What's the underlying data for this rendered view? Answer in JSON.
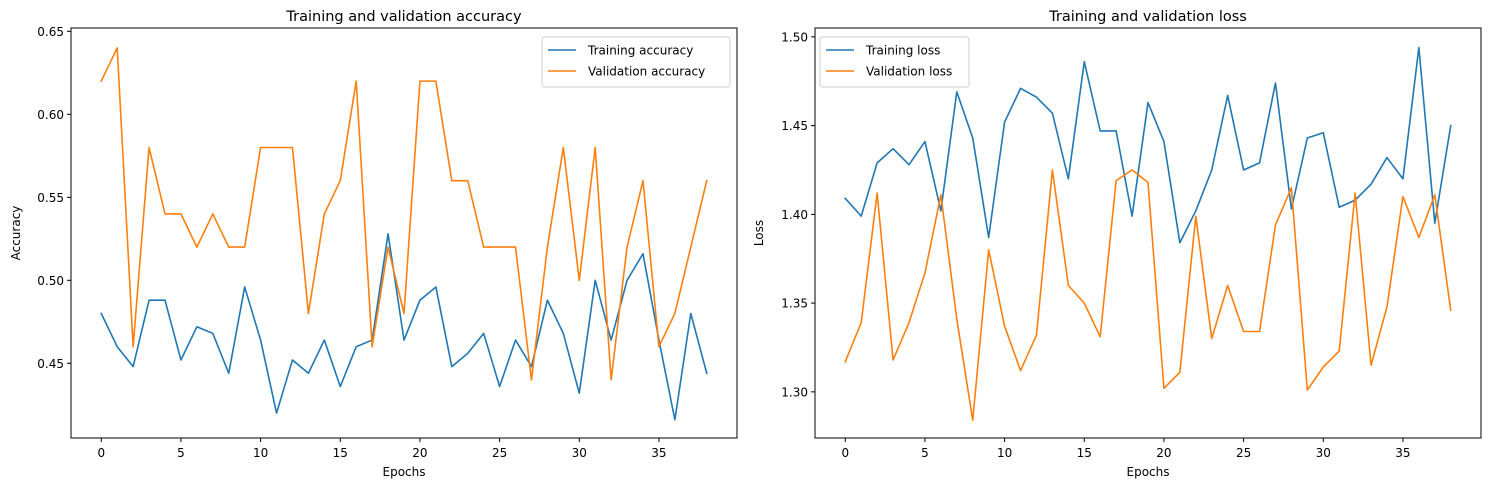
{
  "chart_data": [
    {
      "type": "line",
      "title": "Training and validation accuracy",
      "xlabel": "Epochs",
      "ylabel": "Accuracy",
      "xlim": [
        -1.9,
        39.9
      ],
      "ylim": [
        0.405,
        0.652
      ],
      "xticks": [
        0,
        5,
        10,
        15,
        20,
        25,
        30,
        35
      ],
      "yticks": [
        0.45,
        0.5,
        0.55,
        0.6,
        0.65
      ],
      "ytick_labels": [
        "0.45",
        "0.50",
        "0.55",
        "0.60",
        "0.65"
      ],
      "grid": false,
      "legend_position": "top-right",
      "x": [
        0,
        1,
        2,
        3,
        4,
        5,
        6,
        7,
        8,
        9,
        10,
        11,
        12,
        13,
        14,
        15,
        16,
        17,
        18,
        19,
        20,
        21,
        22,
        23,
        24,
        25,
        26,
        27,
        28,
        29,
        30,
        31,
        32,
        33,
        34,
        35,
        36,
        37,
        38
      ],
      "series": [
        {
          "name": "Training accuracy",
          "color": "#1f77b4",
          "values": [
            0.48,
            0.46,
            0.448,
            0.488,
            0.488,
            0.452,
            0.472,
            0.468,
            0.444,
            0.496,
            0.464,
            0.42,
            0.452,
            0.444,
            0.464,
            0.436,
            0.46,
            0.464,
            0.528,
            0.464,
            0.488,
            0.496,
            0.448,
            0.456,
            0.468,
            0.436,
            0.464,
            0.448,
            0.488,
            0.468,
            0.432,
            0.5,
            0.464,
            0.5,
            0.516,
            0.464,
            0.416,
            0.48,
            0.444
          ]
        },
        {
          "name": "Validation accuracy",
          "color": "#ff7f0e",
          "values": [
            0.62,
            0.64,
            0.46,
            0.58,
            0.54,
            0.54,
            0.52,
            0.54,
            0.52,
            0.52,
            0.58,
            0.58,
            0.58,
            0.48,
            0.54,
            0.56,
            0.62,
            0.46,
            0.52,
            0.48,
            0.62,
            0.62,
            0.56,
            0.56,
            0.52,
            0.52,
            0.52,
            0.44,
            0.52,
            0.58,
            0.5,
            0.58,
            0.44,
            0.52,
            0.56,
            0.46,
            0.48,
            0.52,
            0.56
          ]
        }
      ]
    },
    {
      "type": "line",
      "title": "Training and validation loss",
      "xlabel": "Epochs",
      "ylabel": "Loss",
      "xlim": [
        -1.9,
        39.9
      ],
      "ylim": [
        1.274,
        1.505
      ],
      "xticks": [
        0,
        5,
        10,
        15,
        20,
        25,
        30,
        35
      ],
      "yticks": [
        1.3,
        1.35,
        1.4,
        1.45,
        1.5
      ],
      "ytick_labels": [
        "1.30",
        "1.35",
        "1.40",
        "1.45",
        "1.50"
      ],
      "grid": false,
      "legend_position": "top-left",
      "x": [
        0,
        1,
        2,
        3,
        4,
        5,
        6,
        7,
        8,
        9,
        10,
        11,
        12,
        13,
        14,
        15,
        16,
        17,
        18,
        19,
        20,
        21,
        22,
        23,
        24,
        25,
        26,
        27,
        28,
        29,
        30,
        31,
        32,
        33,
        34,
        35,
        36,
        37,
        38
      ],
      "series": [
        {
          "name": "Training loss",
          "color": "#1f77b4",
          "values": [
            1.409,
            1.399,
            1.429,
            1.437,
            1.428,
            1.441,
            1.402,
            1.469,
            1.443,
            1.387,
            1.452,
            1.471,
            1.466,
            1.457,
            1.42,
            1.486,
            1.447,
            1.447,
            1.399,
            1.463,
            1.441,
            1.384,
            1.402,
            1.425,
            1.467,
            1.425,
            1.429,
            1.474,
            1.403,
            1.443,
            1.446,
            1.404,
            1.408,
            1.417,
            1.432,
            1.42,
            1.494,
            1.395,
            1.45
          ]
        },
        {
          "name": "Validation loss",
          "color": "#ff7f0e",
          "values": [
            1.317,
            1.339,
            1.412,
            1.318,
            1.339,
            1.367,
            1.411,
            1.341,
            1.284,
            1.38,
            1.337,
            1.312,
            1.332,
            1.425,
            1.36,
            1.35,
            1.331,
            1.419,
            1.425,
            1.418,
            1.302,
            1.311,
            1.399,
            1.33,
            1.36,
            1.334,
            1.334,
            1.394,
            1.415,
            1.301,
            1.314,
            1.323,
            1.412,
            1.315,
            1.348,
            1.41,
            1.387,
            1.411,
            1.346
          ]
        }
      ]
    }
  ]
}
